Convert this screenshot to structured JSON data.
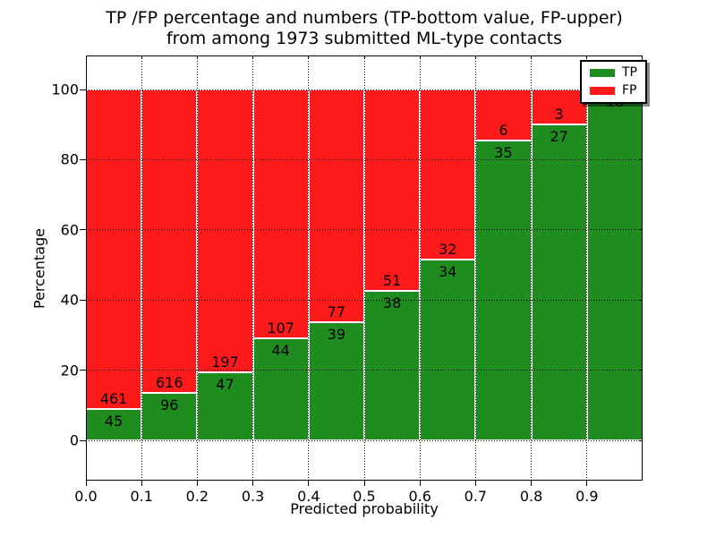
{
  "title": {
    "line1": "TP /FP percentage and numbers (TP-bottom value, FP-upper)",
    "line2": "from among 1973 submitted ML-type contacts"
  },
  "axes": {
    "xlabel": "Predicted probability",
    "ylabel": "Percentage",
    "xtick_labels": [
      "0.0",
      "0.1",
      "0.2",
      "0.3",
      "0.4",
      "0.5",
      "0.6",
      "0.7",
      "0.8",
      "0.9"
    ],
    "ytick_labels": [
      "0",
      "20",
      "40",
      "60",
      "80",
      "100"
    ]
  },
  "legend": {
    "position": "upper right",
    "items": [
      {
        "label": "TP",
        "color": "#1e8c1e"
      },
      {
        "label": "FP",
        "color": "#fc1a1a"
      }
    ]
  },
  "chart_data": {
    "type": "bar",
    "variant": "stacked-percentage",
    "title": "TP /FP percentage and numbers (TP-bottom value, FP-upper) from among 1973 submitted ML-type contacts",
    "xlabel": "Predicted probability",
    "ylabel": "Percentage",
    "categories": [
      "0.0-0.1",
      "0.1-0.2",
      "0.2-0.3",
      "0.3-0.4",
      "0.4-0.5",
      "0.5-0.6",
      "0.6-0.7",
      "0.7-0.8",
      "0.8-0.9",
      "0.9-1.0"
    ],
    "bin_left_edges": [
      0.0,
      0.1,
      0.2,
      0.3,
      0.4,
      0.5,
      0.6,
      0.7,
      0.8,
      0.9
    ],
    "series": [
      {
        "name": "TP",
        "color": "#1e8c1e",
        "counts": [
          45,
          96,
          47,
          44,
          39,
          38,
          34,
          35,
          27,
          18
        ]
      },
      {
        "name": "FP",
        "color": "#fc1a1a",
        "counts": [
          461,
          616,
          197,
          107,
          77,
          51,
          32,
          6,
          3,
          0
        ]
      }
    ],
    "tp_percent": [
      8.89,
      13.48,
      19.26,
      29.14,
      33.62,
      42.7,
      51.52,
      85.37,
      90.0,
      100.0
    ],
    "total_contacts": 1973,
    "xlim": [
      0.0,
      1.0
    ],
    "ylim": [
      -11.5,
      109.7
    ],
    "xticks": [
      0.0,
      0.1,
      0.2,
      0.3,
      0.4,
      0.5,
      0.6,
      0.7,
      0.8,
      0.9
    ],
    "yticks": [
      0,
      20,
      40,
      60,
      80,
      100
    ],
    "grid": "dotted, both axes, drawn over bars",
    "legend_position": "upper right"
  }
}
